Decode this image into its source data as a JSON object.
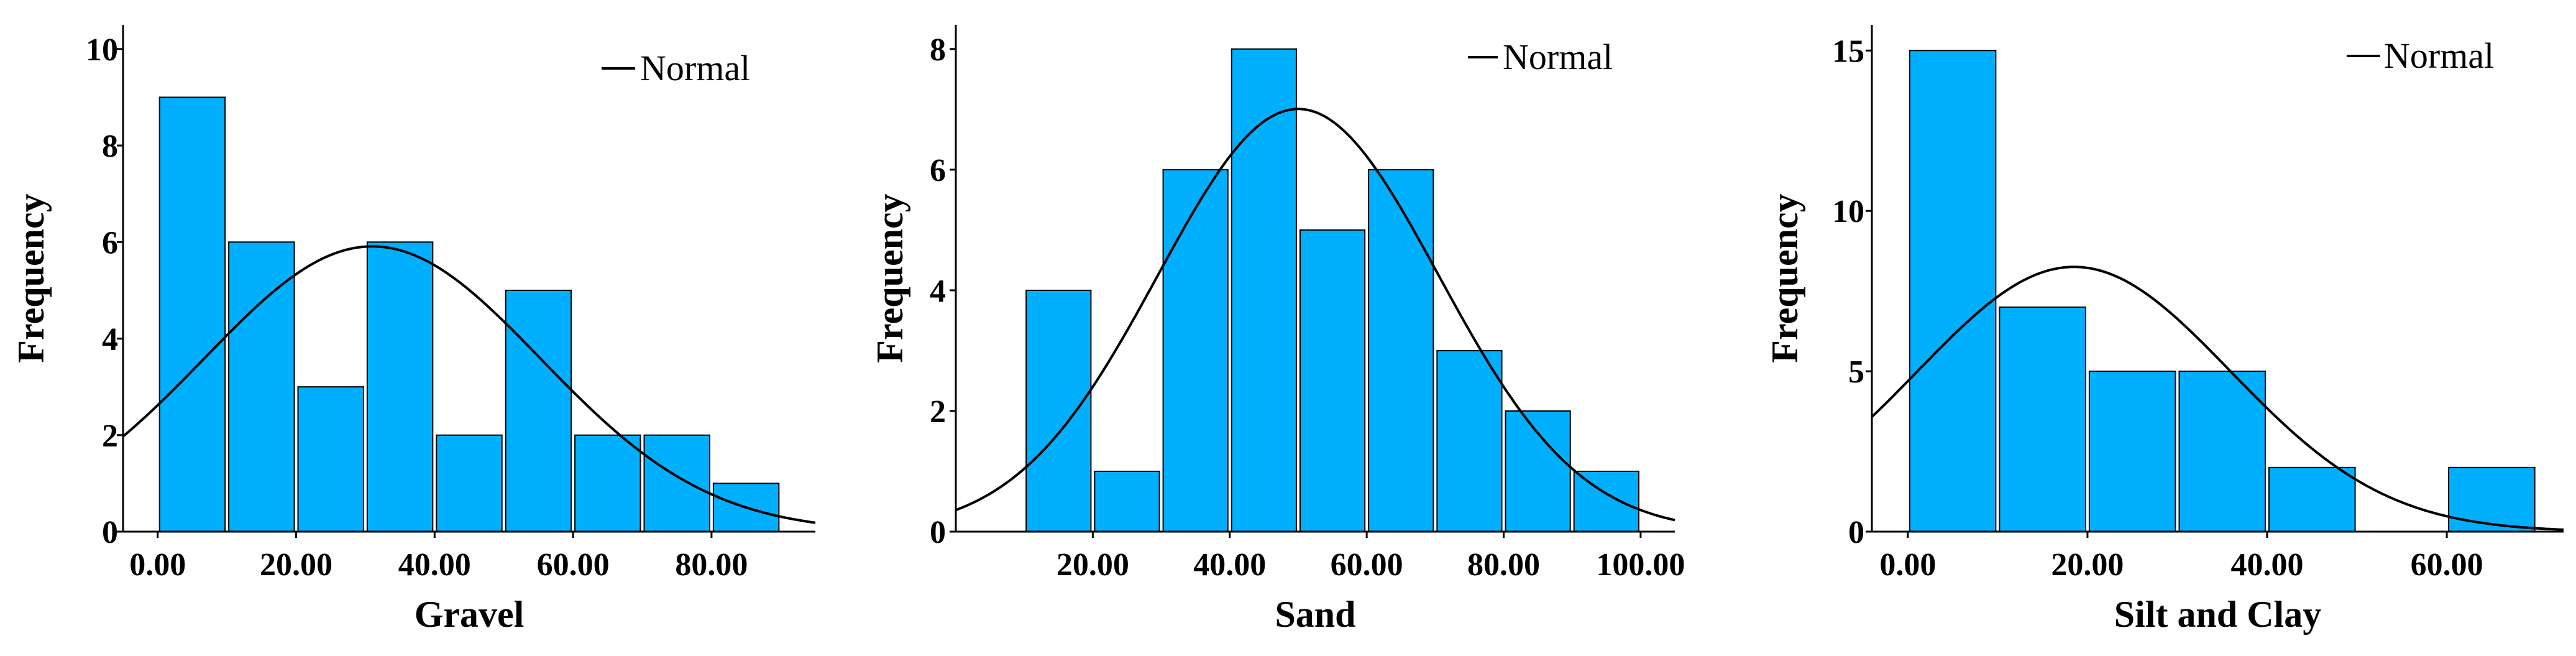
{
  "colors": {
    "bar": "#00B0FF",
    "bar_edge": "#000000",
    "curve": "#000000",
    "axis": "#000000"
  },
  "chart_data": [
    {
      "type": "bar",
      "subtype": "histogram",
      "title": "",
      "xlabel": "Gravel",
      "ylabel": "Frequency",
      "bin_width": 10,
      "bins": [
        {
          "start": 0,
          "end": 10,
          "count": 9
        },
        {
          "start": 10,
          "end": 20,
          "count": 6
        },
        {
          "start": 20,
          "end": 30,
          "count": 3
        },
        {
          "start": 30,
          "end": 40,
          "count": 6
        },
        {
          "start": 40,
          "end": 50,
          "count": 2
        },
        {
          "start": 50,
          "end": 60,
          "count": 5
        },
        {
          "start": 60,
          "end": 70,
          "count": 2
        },
        {
          "start": 70,
          "end": 80,
          "count": 2
        },
        {
          "start": 80,
          "end": 90,
          "count": 1
        }
      ],
      "normal": {
        "mean": 31,
        "sd": 24.3,
        "n": 36
      },
      "xlim": [
        -5,
        95
      ],
      "ylim": [
        0,
        10.5
      ],
      "xticks": [
        {
          "v": 0,
          "label": "0.00"
        },
        {
          "v": 20,
          "label": "20.00"
        },
        {
          "v": 40,
          "label": "40.00"
        },
        {
          "v": 60,
          "label": "60.00"
        },
        {
          "v": 80,
          "label": "80.00"
        }
      ],
      "yticks": [
        {
          "v": 0,
          "label": "0"
        },
        {
          "v": 2,
          "label": "2"
        },
        {
          "v": 4,
          "label": "4"
        },
        {
          "v": 6,
          "label": "6"
        },
        {
          "v": 8,
          "label": "8"
        },
        {
          "v": 10,
          "label": "10"
        }
      ],
      "legend": {
        "label": "Normal",
        "position": "top-right"
      }
    },
    {
      "type": "bar",
      "subtype": "histogram",
      "title": "",
      "xlabel": "Sand",
      "ylabel": "Frequency",
      "bin_width": 10,
      "bins": [
        {
          "start": 10,
          "end": 20,
          "count": 4
        },
        {
          "start": 20,
          "end": 30,
          "count": 1
        },
        {
          "start": 30,
          "end": 40,
          "count": 6
        },
        {
          "start": 40,
          "end": 50,
          "count": 8
        },
        {
          "start": 50,
          "end": 60,
          "count": 5
        },
        {
          "start": 60,
          "end": 70,
          "count": 6
        },
        {
          "start": 70,
          "end": 80,
          "count": 3
        },
        {
          "start": 80,
          "end": 90,
          "count": 2
        },
        {
          "start": 90,
          "end": 100,
          "count": 1
        }
      ],
      "normal": {
        "mean": 50,
        "sd": 20.5,
        "n": 36
      },
      "xlim": [
        0,
        105
      ],
      "ylim": [
        0,
        8.4
      ],
      "xticks": [
        {
          "v": 20,
          "label": "20.00"
        },
        {
          "v": 40,
          "label": "40.00"
        },
        {
          "v": 60,
          "label": "60.00"
        },
        {
          "v": 80,
          "label": "80.00"
        },
        {
          "v": 100,
          "label": "100.00"
        }
      ],
      "yticks": [
        {
          "v": 0,
          "label": "0"
        },
        {
          "v": 2,
          "label": "2"
        },
        {
          "v": 4,
          "label": "4"
        },
        {
          "v": 6,
          "label": "6"
        },
        {
          "v": 8,
          "label": "8"
        }
      ],
      "legend": {
        "label": "Normal",
        "position": "top-right"
      }
    },
    {
      "type": "bar",
      "subtype": "histogram",
      "title": "",
      "xlabel": "Silt and Clay",
      "ylabel": "Frequency",
      "bin_width": 10,
      "bins": [
        {
          "start": 0,
          "end": 10,
          "count": 15
        },
        {
          "start": 10,
          "end": 20,
          "count": 7
        },
        {
          "start": 20,
          "end": 30,
          "count": 5
        },
        {
          "start": 30,
          "end": 40,
          "count": 5
        },
        {
          "start": 40,
          "end": 50,
          "count": 2
        },
        {
          "start": 50,
          "end": 60,
          "count": 0
        },
        {
          "start": 60,
          "end": 70,
          "count": 2
        }
      ],
      "normal": {
        "mean": 18.5,
        "sd": 17.4,
        "n": 36
      },
      "xlim": [
        -4,
        73
      ],
      "ylim": [
        0,
        15.8
      ],
      "xticks": [
        {
          "v": 0,
          "label": "0.00"
        },
        {
          "v": 20,
          "label": "20.00"
        },
        {
          "v": 40,
          "label": "40.00"
        },
        {
          "v": 60,
          "label": "60.00"
        }
      ],
      "yticks": [
        {
          "v": 0,
          "label": "0"
        },
        {
          "v": 5,
          "label": "5"
        },
        {
          "v": 10,
          "label": "10"
        },
        {
          "v": 15,
          "label": "15"
        }
      ],
      "legend": {
        "label": "Normal",
        "position": "top-right"
      }
    }
  ]
}
